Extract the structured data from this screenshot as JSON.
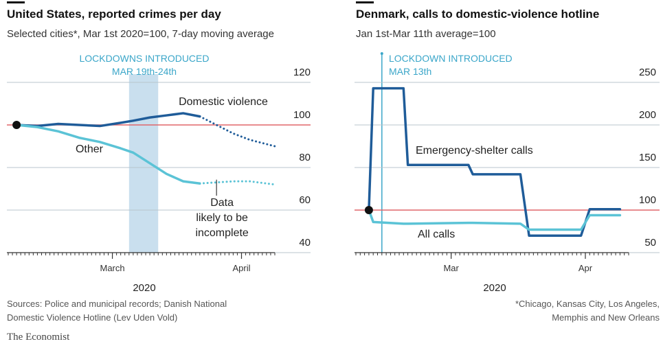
{
  "chart_data": [
    {
      "type": "line",
      "title": "United States, reported crimes per day",
      "subtitle": "Selected cities*, Mar 1st 2020=100, 7-day moving average",
      "x": [
        0,
        5,
        10,
        15,
        20,
        25,
        28,
        32,
        36,
        40,
        44,
        48,
        52,
        56,
        60,
        62
      ],
      "series": [
        {
          "name": "Domestic violence",
          "color": "#1f5c99",
          "values": [
            100,
            99.5,
            100.5,
            100,
            99.5,
            101,
            102,
            103.5,
            104.5,
            105.5,
            104,
            100,
            96,
            93,
            91,
            90
          ]
        },
        {
          "name": "Other",
          "color": "#5bc3d6",
          "values": [
            100,
            99,
            97,
            94,
            92,
            89,
            87,
            82,
            77,
            73.5,
            72.5,
            73,
            73.5,
            73.5,
            72.5,
            72
          ]
        }
      ],
      "incomplete_from": 44,
      "incomplete_label": [
        "Data",
        "likely to be",
        "incomplete"
      ],
      "xlim": [
        -2,
        62
      ],
      "xticks": [
        {
          "value": 23,
          "label": "March"
        },
        {
          "value": 54,
          "label": "April"
        }
      ],
      "x_label": "2020",
      "ylim": [
        40,
        120
      ],
      "yticks": [
        40,
        60,
        80,
        100,
        120
      ],
      "reference": 100,
      "highlight": {
        "label": [
          "LOCKDOWNS INTRODUCED",
          "MAR 19th-24th"
        ],
        "from": 27,
        "to": 34
      },
      "grid": true
    },
    {
      "type": "line",
      "title": "Denmark, calls to domestic-violence hotline",
      "subtitle": "Jan 1st-Mar 11th average=100",
      "x": [
        0,
        1,
        8,
        9,
        23,
        24,
        35,
        37,
        49,
        51,
        58
      ],
      "series": [
        {
          "name": "Emergency-shelter calls",
          "color": "#1f5c99",
          "values": [
            100,
            243,
            243,
            153,
            153,
            142,
            142,
            70,
            70,
            101,
            101
          ]
        },
        {
          "name": "All calls",
          "color": "#5bc3d6",
          "values": [
            100,
            86,
            84,
            84,
            85,
            85,
            84,
            77,
            77,
            94,
            94
          ]
        }
      ],
      "xlim": [
        -3,
        60
      ],
      "xticks": [
        {
          "value": 19,
          "label": "Mar"
        },
        {
          "value": 50,
          "label": "Apr"
        }
      ],
      "x_label": "2020",
      "ylim": [
        50,
        250
      ],
      "yticks": [
        50,
        100,
        150,
        200,
        250
      ],
      "reference": 100,
      "highlight": {
        "label": [
          "LOCKDOWN INTRODUCED",
          "MAR 13th"
        ],
        "at": 3
      },
      "grid": true
    }
  ],
  "sources": [
    "Sources: Police and municipal records; Danish National",
    "Domestic Violence Hotline (Lev Uden Vold)"
  ],
  "footnote": [
    "*Chicago, Kansas City, Los Angeles,",
    "Memphis and New Orleans"
  ],
  "brand": "The Economist"
}
